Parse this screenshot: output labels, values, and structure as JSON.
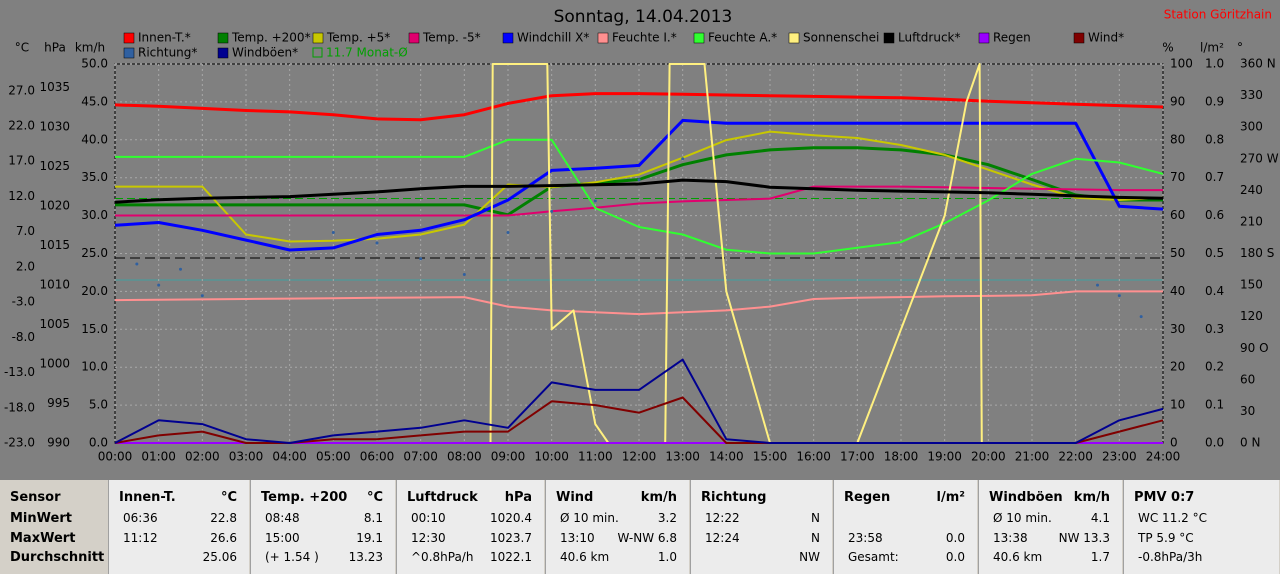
{
  "chart_data": {
    "type": "line",
    "title": "Sonntag, 14.04.2013",
    "station": "Station Göritzhain",
    "xlim": [
      0,
      24
    ],
    "xticks": [
      {
        "value": 0,
        "label": "00:00"
      },
      {
        "value": 1,
        "label": "01:00"
      },
      {
        "value": 2,
        "label": "02:00"
      },
      {
        "value": 3,
        "label": "03:00"
      },
      {
        "value": 4,
        "label": "04:00"
      },
      {
        "value": 5,
        "label": "05:00"
      },
      {
        "value": 6,
        "label": "06:00"
      },
      {
        "value": 7,
        "label": "07:00"
      },
      {
        "value": 8,
        "label": "08:00"
      },
      {
        "value": 9,
        "label": "09:00"
      },
      {
        "value": 10,
        "label": "10:00"
      },
      {
        "value": 11,
        "label": "11:00"
      },
      {
        "value": 12,
        "label": "12:00"
      },
      {
        "value": 13,
        "label": "13:00"
      },
      {
        "value": 14,
        "label": "14:00"
      },
      {
        "value": 15,
        "label": "15:00"
      },
      {
        "value": 16,
        "label": "16:00"
      },
      {
        "value": 17,
        "label": "17:00"
      },
      {
        "value": 18,
        "label": "18:00"
      },
      {
        "value": 19,
        "label": "19:00"
      },
      {
        "value": 20,
        "label": "20:00"
      },
      {
        "value": 21,
        "label": "21:00"
      },
      {
        "value": 22,
        "label": "22:00"
      },
      {
        "value": 23,
        "label": "23:00"
      },
      {
        "value": 24,
        "label": "24:00"
      }
    ],
    "x": [
      0,
      1,
      2,
      3,
      4,
      5,
      6,
      7,
      8,
      9,
      10,
      11,
      12,
      13,
      14,
      15,
      16,
      17,
      18,
      19,
      20,
      21,
      22,
      23,
      24
    ],
    "grid": true,
    "axes": [
      {
        "label": "°C",
        "lim": [
          -23,
          30.8
        ],
        "ticks": [
          {
            "value": 27,
            "label": "27.0"
          },
          {
            "value": 22,
            "label": "22.0"
          },
          {
            "value": 17,
            "label": "17.0"
          },
          {
            "value": 12,
            "label": "12.0"
          },
          {
            "value": 7,
            "label": "7.0"
          },
          {
            "value": 2,
            "label": "2.0"
          },
          {
            "value": -3,
            "label": "-3.0"
          },
          {
            "value": -8,
            "label": "-8.0"
          },
          {
            "value": -13,
            "label": "-13.0"
          },
          {
            "value": -18,
            "label": "-18.0"
          },
          {
            "value": -23,
            "label": "-23.0"
          }
        ]
      },
      {
        "label": "hPa",
        "lim": [
          990,
          1038
        ],
        "ticks": [
          1035,
          1030,
          1025,
          1020,
          1015,
          1010,
          1005,
          1000,
          995,
          990
        ]
      },
      {
        "label": "km/h",
        "lim": [
          0,
          50
        ],
        "ticks": [
          {
            "value": 50,
            "label": "50.0"
          },
          {
            "value": 45,
            "label": "45.0"
          },
          {
            "value": 40,
            "label": "40.0"
          },
          {
            "value": 35,
            "label": "35.0"
          },
          {
            "value": 30,
            "label": "30.0"
          },
          {
            "value": 25,
            "label": "25.0"
          },
          {
            "value": 20,
            "label": "20.0"
          },
          {
            "value": 15,
            "label": "15.0"
          },
          {
            "value": 10,
            "label": "10.0"
          },
          {
            "value": 5,
            "label": "5.0"
          },
          {
            "value": 0,
            "label": "0.0"
          }
        ]
      },
      {
        "label": "%",
        "lim": [
          0,
          100
        ],
        "ticks": [
          100,
          90,
          80,
          70,
          60,
          50,
          40,
          30,
          20,
          10,
          0
        ]
      },
      {
        "label": "l/m²",
        "lim": [
          0,
          1
        ],
        "ticks": [
          {
            "value": 1,
            "label": "1.0"
          },
          0.9,
          0.8,
          0.7,
          0.6,
          0.5,
          0.4,
          0.3,
          0.2,
          0.1,
          {
            "value": 0,
            "label": "0.0"
          }
        ]
      },
      {
        "label": "°",
        "lim": [
          0,
          360
        ],
        "ticks": [
          {
            "value": 360,
            "label": "360 N"
          },
          330,
          300,
          {
            "value": 270,
            "label": "270 W"
          },
          240,
          210,
          {
            "value": 180,
            "label": "180 S"
          },
          150,
          120,
          {
            "value": 90,
            "label": "90 O"
          },
          60,
          30,
          {
            "value": 0,
            "label": "0 N"
          }
        ]
      }
    ],
    "monthly_avg": {
      "value": 11.7,
      "label": "11.7 Monat-Ø",
      "color": "#00a000",
      "axis": 0
    },
    "series": [
      {
        "name": "Innen-T.*",
        "color": "#ff0000",
        "axis": 0,
        "width": 3,
        "values": [
          25.0,
          24.8,
          24.5,
          24.2,
          24.0,
          23.6,
          23.0,
          22.9,
          23.6,
          25.2,
          26.3,
          26.6,
          26.6,
          26.5,
          26.4,
          26.3,
          26.2,
          26.1,
          26.0,
          25.8,
          25.5,
          25.3,
          25.1,
          24.9,
          24.7
        ]
      },
      {
        "name": "Temp. +200*",
        "color": "#008000",
        "axis": 0,
        "width": 3,
        "values": [
          10.8,
          10.8,
          10.8,
          10.8,
          10.8,
          10.8,
          10.8,
          10.8,
          10.8,
          9.4,
          13.4,
          13.9,
          14.4,
          16.5,
          17.9,
          18.6,
          18.9,
          18.9,
          18.6,
          17.9,
          16.5,
          14.4,
          12.2,
          11.5,
          11.5
        ]
      },
      {
        "name": "Temp. +5*",
        "color": "#c8c800",
        "axis": 0,
        "width": 2,
        "values": [
          13.4,
          13.4,
          13.4,
          6.6,
          5.6,
          5.7,
          6.0,
          6.6,
          8.0,
          13.7,
          13.3,
          14.0,
          15.1,
          17.5,
          20.0,
          21.2,
          20.7,
          20.3,
          19.3,
          17.9,
          15.8,
          13.7,
          11.8,
          11.5,
          11.8
        ]
      },
      {
        "name": "Temp. -5*",
        "color": "#e0006e",
        "axis": 0,
        "width": 2,
        "values": [
          9.3,
          9.3,
          9.3,
          9.3,
          9.3,
          9.3,
          9.3,
          9.3,
          9.3,
          9.3,
          9.9,
          10.4,
          11.0,
          11.3,
          11.5,
          11.7,
          13.4,
          13.4,
          13.4,
          13.3,
          13.2,
          13.1,
          13.0,
          12.9,
          12.9
        ]
      },
      {
        "name": "Windchill X*",
        "color": "#0000ff",
        "axis": 0,
        "width": 3,
        "values": [
          7.9,
          8.3,
          7.2,
          5.8,
          4.4,
          4.7,
          6.6,
          7.2,
          8.7,
          11.5,
          15.7,
          16.0,
          16.4,
          22.8,
          22.4,
          22.4,
          22.4,
          22.4,
          22.4,
          22.4,
          22.4,
          22.4,
          22.4,
          10.6,
          10.2
        ]
      },
      {
        "name": "Feuchte I.*",
        "color": "#ff9090",
        "axis": 3,
        "width": 2,
        "values": [
          37.7,
          37.8,
          37.9,
          38.0,
          38.1,
          38.2,
          38.3,
          38.4,
          38.5,
          36.0,
          35.0,
          34.5,
          34.0,
          34.5,
          35.0,
          36.0,
          38.0,
          38.3,
          38.5,
          38.7,
          38.8,
          39.0,
          40.0,
          40.0,
          40.0
        ]
      },
      {
        "name": "Feuchte A.*",
        "color": "#30ff30",
        "axis": 3,
        "width": 2,
        "values": [
          75.5,
          75.5,
          75.5,
          75.5,
          75.5,
          75.5,
          75.5,
          75.5,
          75.5,
          80,
          80,
          62,
          57,
          55,
          51,
          50,
          50,
          51.5,
          53,
          58,
          64,
          71,
          75,
          74,
          71
        ]
      },
      {
        "name": "Sonnenschei",
        "color": "#fff080",
        "axis": 3,
        "width": 2,
        "x": [
          0,
          8.6,
          8.65,
          9.9,
          10.0,
          10.5,
          11.0,
          11.3,
          12.6,
          12.7,
          13.5,
          14.0,
          14.5,
          15.0,
          17.0,
          18.0,
          19.0,
          19.5,
          19.8,
          19.85,
          24
        ],
        "values": [
          0,
          0,
          100,
          100,
          30,
          35,
          5,
          0,
          0,
          100,
          100,
          40,
          20,
          0,
          0,
          30,
          60,
          90,
          100,
          0,
          0
        ]
      },
      {
        "name": "Luftdruck*",
        "color": "#000000",
        "axis": 1,
        "width": 3,
        "values": [
          1020.5,
          1020.8,
          1021,
          1021.1,
          1021.2,
          1021.5,
          1021.8,
          1022.2,
          1022.5,
          1022.5,
          1022.6,
          1022.7,
          1022.8,
          1023.3,
          1023.1,
          1022.4,
          1022.2,
          1022.0,
          1021.9,
          1021.8,
          1021.7,
          1021.5,
          1021.3,
          1021.1,
          1021.0
        ]
      },
      {
        "name": "Regen",
        "color": "#9900ff",
        "axis": 4,
        "width": 2,
        "x": [
          0,
          24
        ],
        "values": [
          0,
          0
        ]
      },
      {
        "name": "Wind*",
        "color": "#800000",
        "axis": 2,
        "width": 2,
        "values": [
          0,
          1,
          1.5,
          0,
          0,
          0.5,
          0.5,
          1,
          1.5,
          1.5,
          5.5,
          5,
          4,
          6,
          0,
          0,
          0,
          0,
          0,
          0,
          0,
          0,
          0,
          1.5,
          3
        ]
      },
      {
        "name": "Richtung*",
        "color": "#3060a0",
        "axis": 5,
        "scatter": true,
        "x": [
          0.5,
          1,
          1.5,
          2,
          5,
          6,
          7,
          8,
          9,
          10,
          11,
          12,
          13,
          22.5,
          23,
          23.5
        ],
        "values": [
          170,
          150,
          165,
          140,
          200,
          190,
          175,
          160,
          200,
          220,
          230,
          250,
          270,
          150,
          140,
          120
        ]
      },
      {
        "name": "Windböen*",
        "color": "#000090",
        "axis": 2,
        "width": 2,
        "values": [
          0,
          3,
          2.5,
          0.5,
          0,
          1,
          1.5,
          2,
          3,
          2,
          8,
          7,
          7,
          11,
          0.5,
          0,
          0,
          0,
          0,
          0,
          0,
          0,
          0,
          3,
          4.5
        ]
      }
    ]
  },
  "table": {
    "columns": [
      {
        "title": "Sensor",
        "rows": [
          [
            "MinWert"
          ],
          [
            "MaxWert"
          ],
          [
            "Durchschnitt"
          ]
        ]
      },
      {
        "title": "Innen-T.",
        "unit": "°C",
        "rows": [
          [
            "06:36",
            "22.8"
          ],
          [
            "11:12",
            "26.6"
          ],
          [
            null,
            "25.06"
          ]
        ]
      },
      {
        "title": "Temp. +200",
        "unit": "°C",
        "rows": [
          [
            "08:48",
            "8.1"
          ],
          [
            "15:00",
            "19.1"
          ],
          [
            "(+ 1.54 )",
            "13.23"
          ]
        ]
      },
      {
        "title": "Luftdruck",
        "unit": "hPa",
        "rows": [
          [
            "00:10",
            "1020.4"
          ],
          [
            "12:30",
            "1023.7"
          ],
          [
            "^0.8hPa/h",
            "1022.1"
          ]
        ]
      },
      {
        "title": "Wind",
        "unit": "km/h",
        "rows": [
          [
            "Ø 10 min.",
            "3.2"
          ],
          [
            "13:10",
            "W-NW 6.8"
          ],
          [
            "40.6 km",
            "1.0"
          ]
        ]
      },
      {
        "title": "Richtung",
        "rows": [
          [
            "12:22",
            "N"
          ],
          [
            "12:24",
            "N"
          ],
          [
            null,
            "NW"
          ]
        ]
      },
      {
        "title": "Regen",
        "unit": "l/m²",
        "rows": [
          [
            null,
            null
          ],
          [
            "23:58",
            "0.0"
          ],
          [
            "Gesamt:",
            "0.0"
          ]
        ]
      },
      {
        "title": "Windböen",
        "unit": "km/h",
        "rows": [
          [
            "Ø 10 min.",
            "4.1"
          ],
          [
            "13:38",
            "NW 13.3"
          ],
          [
            "40.6 km",
            "1.7"
          ]
        ]
      },
      {
        "title": "PMV 0:7",
        "rows": [
          [
            "WC 11.2 °C"
          ],
          [
            "TP 5.9 °C"
          ],
          [
            "-0.8hPa/3h"
          ]
        ]
      }
    ]
  }
}
